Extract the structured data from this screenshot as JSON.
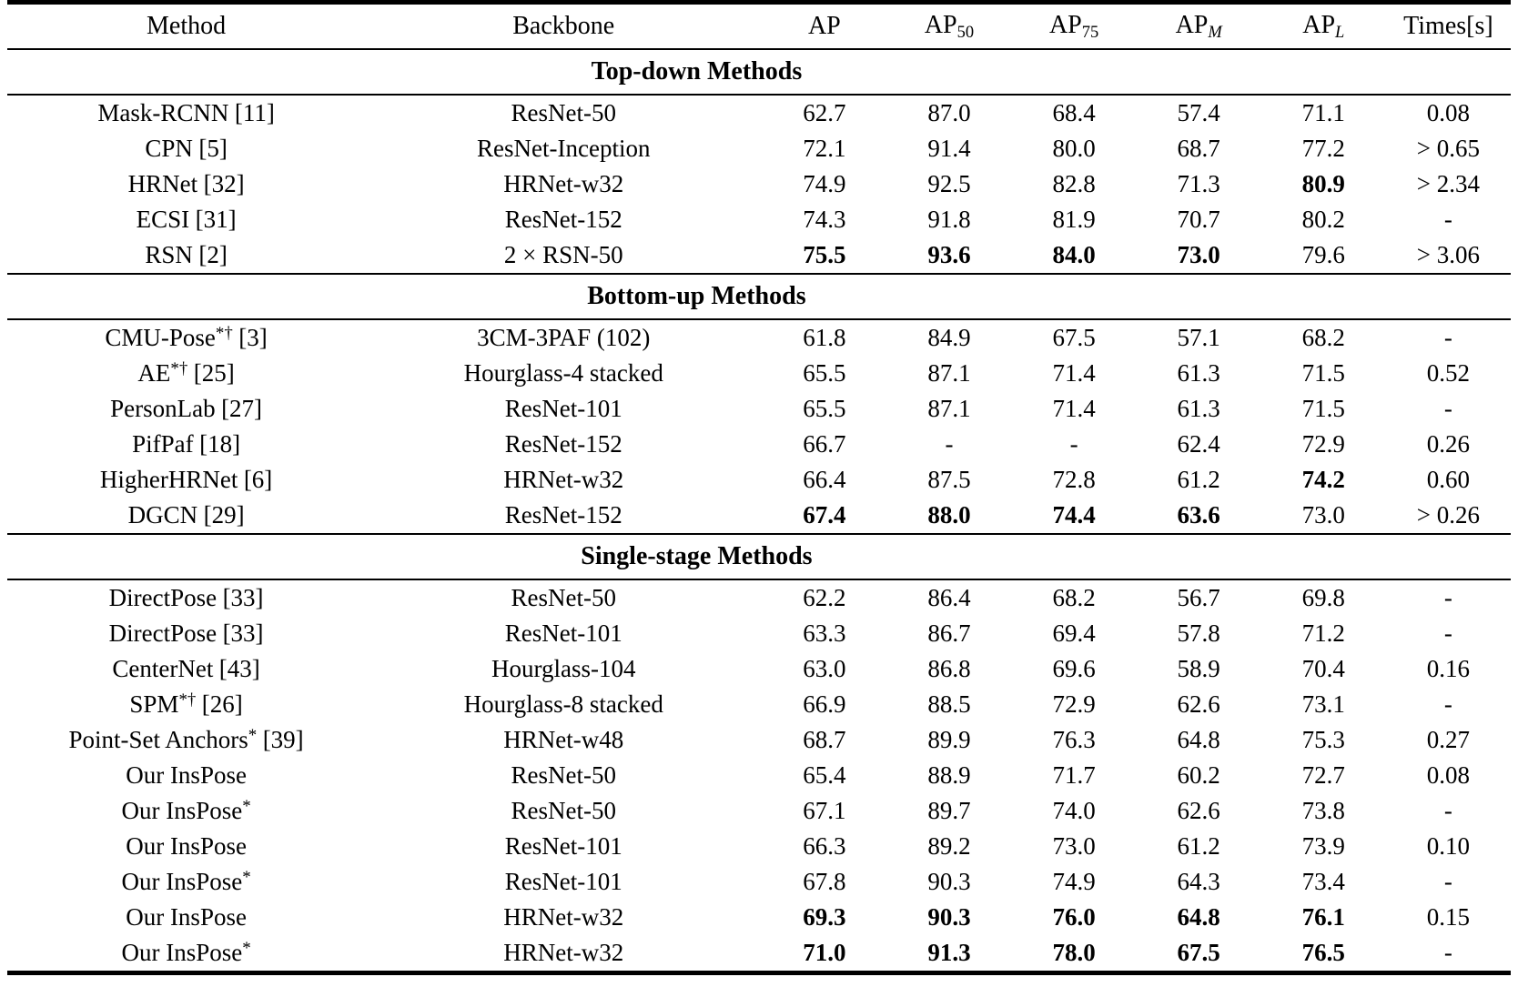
{
  "table": {
    "columns": [
      {
        "id": "method",
        "label": "Method",
        "sub": ""
      },
      {
        "id": "backbone",
        "label": "Backbone",
        "sub": ""
      },
      {
        "id": "ap",
        "label": "AP",
        "sub": ""
      },
      {
        "id": "ap50",
        "label": "AP",
        "sub": "50"
      },
      {
        "id": "ap75",
        "label": "AP",
        "sub": "75"
      },
      {
        "id": "apm",
        "label": "AP",
        "sub": "M",
        "italic_sub": true
      },
      {
        "id": "apl",
        "label": "AP",
        "sub": "L",
        "italic_sub": true
      },
      {
        "id": "times",
        "label": "Times[s]",
        "sub": ""
      }
    ],
    "sections": [
      {
        "title": "Top-down Methods",
        "rows": [
          {
            "method": "Mask-RCNN",
            "sup": "",
            "ref": "[11]",
            "backbone": "ResNet-50",
            "values": [
              "62.7",
              "87.0",
              "68.4",
              "57.4",
              "71.1",
              "0.08"
            ],
            "bold": []
          },
          {
            "method": "CPN",
            "sup": "",
            "ref": "[5]",
            "backbone": "ResNet-Inception",
            "values": [
              "72.1",
              "91.4",
              "80.0",
              "68.7",
              "77.2",
              "> 0.65"
            ],
            "bold": []
          },
          {
            "method": "HRNet",
            "sup": "",
            "ref": "[32]",
            "backbone": "HRNet-w32",
            "values": [
              "74.9",
              "92.5",
              "82.8",
              "71.3",
              "80.9",
              "> 2.34"
            ],
            "bold": [
              4
            ]
          },
          {
            "method": "ECSI",
            "sup": "",
            "ref": "[31]",
            "backbone": "ResNet-152",
            "values": [
              "74.3",
              "91.8",
              "81.9",
              "70.7",
              "80.2",
              "-"
            ],
            "bold": []
          },
          {
            "method": "RSN",
            "sup": "",
            "ref": "[2]",
            "backbone": "2 × RSN-50",
            "values": [
              "75.5",
              "93.6",
              "84.0",
              "73.0",
              "79.6",
              "> 3.06"
            ],
            "bold": [
              0,
              1,
              2,
              3
            ]
          }
        ]
      },
      {
        "title": "Bottom-up Methods",
        "rows": [
          {
            "method": "CMU-Pose",
            "sup": "*†",
            "ref": "[3]",
            "backbone": "3CM-3PAF (102)",
            "values": [
              "61.8",
              "84.9",
              "67.5",
              "57.1",
              "68.2",
              "-"
            ],
            "bold": []
          },
          {
            "method": "AE",
            "sup": "*†",
            "ref": "[25]",
            "backbone": "Hourglass-4 stacked",
            "values": [
              "65.5",
              "87.1",
              "71.4",
              "61.3",
              "71.5",
              "0.52"
            ],
            "bold": []
          },
          {
            "method": "PersonLab",
            "sup": "",
            "ref": "[27]",
            "backbone": "ResNet-101",
            "values": [
              "65.5",
              "87.1",
              "71.4",
              "61.3",
              "71.5",
              "-"
            ],
            "bold": []
          },
          {
            "method": "PifPaf",
            "sup": "",
            "ref": "[18]",
            "backbone": "ResNet-152",
            "values": [
              "66.7",
              "-",
              "-",
              "62.4",
              "72.9",
              "0.26"
            ],
            "bold": []
          },
          {
            "method": "HigherHRNet",
            "sup": "",
            "ref": "[6]",
            "backbone": "HRNet-w32",
            "values": [
              "66.4",
              "87.5",
              "72.8",
              "61.2",
              "74.2",
              "0.60"
            ],
            "bold": [
              4
            ]
          },
          {
            "method": "DGCN",
            "sup": "",
            "ref": "[29]",
            "backbone": "ResNet-152",
            "values": [
              "67.4",
              "88.0",
              "74.4",
              "63.6",
              "73.0",
              "> 0.26"
            ],
            "bold": [
              0,
              1,
              2,
              3
            ]
          }
        ]
      },
      {
        "title": "Single-stage Methods",
        "rows": [
          {
            "method": "DirectPose",
            "sup": "",
            "ref": "[33]",
            "backbone": "ResNet-50",
            "values": [
              "62.2",
              "86.4",
              "68.2",
              "56.7",
              "69.8",
              "-"
            ],
            "bold": []
          },
          {
            "method": "DirectPose",
            "sup": "",
            "ref": "[33]",
            "backbone": "ResNet-101",
            "values": [
              "63.3",
              "86.7",
              "69.4",
              "57.8",
              "71.2",
              "-"
            ],
            "bold": []
          },
          {
            "method": "CenterNet",
            "sup": "",
            "ref": "[43]",
            "backbone": "Hourglass-104",
            "values": [
              "63.0",
              "86.8",
              "69.6",
              "58.9",
              "70.4",
              "0.16"
            ],
            "bold": []
          },
          {
            "method": "SPM",
            "sup": "*†",
            "ref": "[26]",
            "backbone": "Hourglass-8 stacked",
            "values": [
              "66.9",
              "88.5",
              "72.9",
              "62.6",
              "73.1",
              "-"
            ],
            "bold": []
          },
          {
            "method": "Point-Set Anchors",
            "sup": "*",
            "ref": "[39]",
            "backbone": "HRNet-w48",
            "values": [
              "68.7",
              "89.9",
              "76.3",
              "64.8",
              "75.3",
              "0.27"
            ],
            "bold": []
          },
          {
            "method": "Our InsPose",
            "sup": "",
            "ref": "",
            "backbone": "ResNet-50",
            "values": [
              "65.4",
              "88.9",
              "71.7",
              "60.2",
              "72.7",
              "0.08"
            ],
            "bold": []
          },
          {
            "method": "Our InsPose",
            "sup": "*",
            "ref": "",
            "backbone": "ResNet-50",
            "values": [
              "67.1",
              "89.7",
              "74.0",
              "62.6",
              "73.8",
              "-"
            ],
            "bold": []
          },
          {
            "method": "Our InsPose",
            "sup": "",
            "ref": "",
            "backbone": "ResNet-101",
            "values": [
              "66.3",
              "89.2",
              "73.0",
              "61.2",
              "73.9",
              "0.10"
            ],
            "bold": []
          },
          {
            "method": "Our InsPose",
            "sup": "*",
            "ref": "",
            "backbone": "ResNet-101",
            "values": [
              "67.8",
              "90.3",
              "74.9",
              "64.3",
              "73.4",
              "-"
            ],
            "bold": []
          },
          {
            "method": "Our InsPose",
            "sup": "",
            "ref": "",
            "backbone": "HRNet-w32",
            "values": [
              "69.3",
              "90.3",
              "76.0",
              "64.8",
              "76.1",
              "0.15"
            ],
            "bold": [
              0,
              1,
              2,
              3,
              4
            ]
          },
          {
            "method": "Our InsPose",
            "sup": "*",
            "ref": "",
            "backbone": "HRNet-w32",
            "values": [
              "71.0",
              "91.3",
              "78.0",
              "67.5",
              "76.5",
              "-"
            ],
            "bold": [
              0,
              1,
              2,
              3,
              4
            ]
          }
        ]
      }
    ]
  }
}
